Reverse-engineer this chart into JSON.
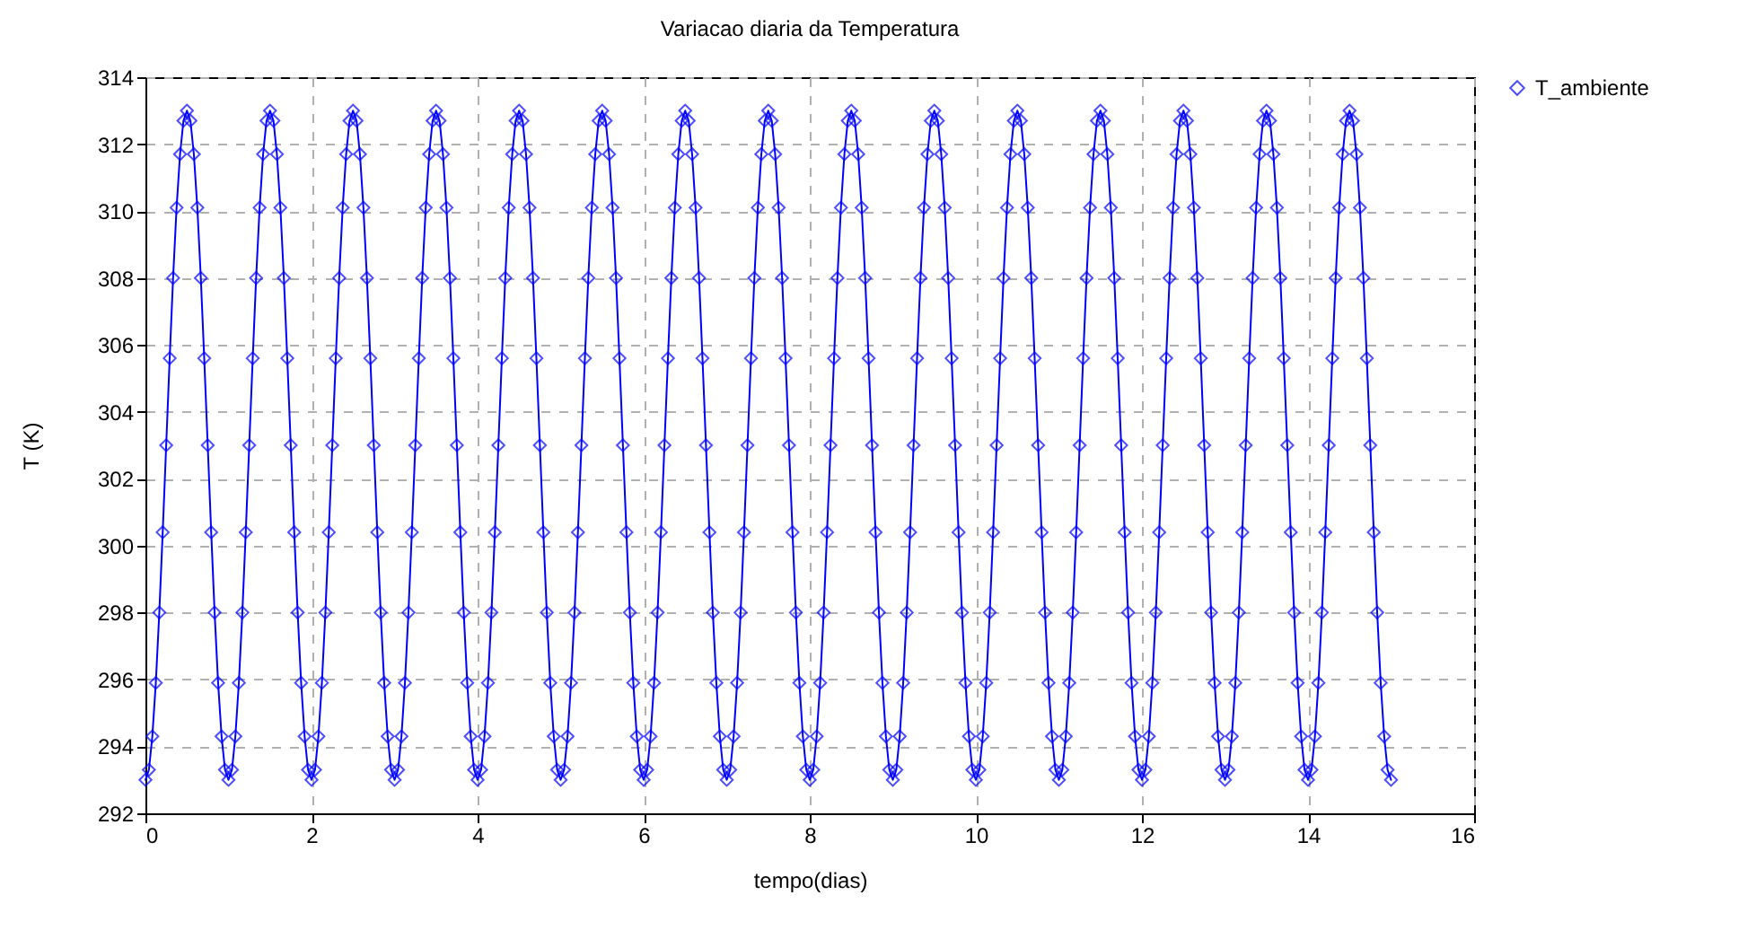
{
  "chart_data": {
    "type": "line",
    "title": "Variacao diaria da Temperatura",
    "xlabel": "tempo(dias)",
    "ylabel": "T (K)",
    "x": [
      0,
      0.042,
      0.083,
      0.125,
      0.167,
      0.208,
      0.25,
      0.292,
      0.333,
      0.375,
      0.417,
      0.458,
      0.5,
      0.542,
      0.583,
      0.625,
      0.667,
      0.708,
      0.75,
      0.792,
      0.833,
      0.875,
      0.917,
      0.958,
      1,
      1.042,
      1.083,
      1.125,
      1.167,
      1.208,
      1.25,
      1.292,
      1.333,
      1.375,
      1.417,
      1.458,
      1.5,
      1.542,
      1.583,
      1.625,
      1.667,
      1.708,
      1.75,
      1.792,
      1.833,
      1.875,
      1.917,
      1.958,
      2,
      2.042,
      2.083,
      2.125,
      2.167,
      2.208,
      2.25,
      2.292,
      2.333,
      2.375,
      2.417,
      2.458,
      2.5,
      2.542,
      2.583,
      2.625,
      2.667,
      2.708,
      2.75,
      2.792,
      2.833,
      2.875,
      2.917,
      2.958,
      3,
      3.042,
      3.083,
      3.125,
      3.167,
      3.208,
      3.25,
      3.292,
      3.333,
      3.375,
      3.417,
      3.458,
      3.5,
      3.542,
      3.583,
      3.625,
      3.667,
      3.708,
      3.75,
      3.792,
      3.833,
      3.875,
      3.917,
      3.958,
      4,
      4.042,
      4.083,
      4.125,
      4.167,
      4.208,
      4.25,
      4.292,
      4.333,
      4.375,
      4.417,
      4.458,
      4.5,
      4.542,
      4.583,
      4.625,
      4.667,
      4.708,
      4.75,
      4.792,
      4.833,
      4.875,
      4.917,
      4.958,
      5,
      5.042,
      5.083,
      5.125,
      5.167,
      5.208,
      5.25,
      5.292,
      5.333,
      5.375,
      5.417,
      5.458,
      5.5,
      5.542,
      5.583,
      5.625,
      5.667,
      5.708,
      5.75,
      5.792,
      5.833,
      5.875,
      5.917,
      5.958,
      6,
      6.042,
      6.083,
      6.125,
      6.167,
      6.208,
      6.25,
      6.292,
      6.333,
      6.375,
      6.417,
      6.458,
      6.5,
      6.542,
      6.583,
      6.625,
      6.667,
      6.708,
      6.75,
      6.792,
      6.833,
      6.875,
      6.917,
      6.958,
      7,
      7.042,
      7.083,
      7.125,
      7.167,
      7.208,
      7.25,
      7.292,
      7.333,
      7.375,
      7.417,
      7.458,
      7.5,
      7.542,
      7.583,
      7.625,
      7.667,
      7.708,
      7.75,
      7.792,
      7.833,
      7.875,
      7.917,
      7.958,
      8,
      8.042,
      8.083,
      8.125,
      8.167,
      8.208,
      8.25,
      8.292,
      8.333,
      8.375,
      8.417,
      8.458,
      8.5,
      8.542,
      8.583,
      8.625,
      8.667,
      8.708,
      8.75,
      8.792,
      8.833,
      8.875,
      8.917,
      8.958,
      9,
      9.042,
      9.083,
      9.125,
      9.167,
      9.208,
      9.25,
      9.292,
      9.333,
      9.375,
      9.417,
      9.458,
      9.5,
      9.542,
      9.583,
      9.625,
      9.667,
      9.708,
      9.75,
      9.792,
      9.833,
      9.875,
      9.917,
      9.958,
      10,
      10.042,
      10.083,
      10.125,
      10.167,
      10.208,
      10.25,
      10.292,
      10.333,
      10.375,
      10.417,
      10.458,
      10.5,
      10.542,
      10.583,
      10.625,
      10.667,
      10.708,
      10.75,
      10.792,
      10.833,
      10.875,
      10.917,
      10.958,
      11,
      11.042,
      11.083,
      11.125,
      11.167,
      11.208,
      11.25,
      11.292,
      11.333,
      11.375,
      11.417,
      11.458,
      11.5,
      11.542,
      11.583,
      11.625,
      11.667,
      11.708,
      11.75,
      11.792,
      11.833,
      11.875,
      11.917,
      11.958,
      12,
      12.042,
      12.083,
      12.125,
      12.167,
      12.208,
      12.25,
      12.292,
      12.333,
      12.375,
      12.417,
      12.458,
      12.5,
      12.542,
      12.583,
      12.625,
      12.667,
      12.708,
      12.75,
      12.792,
      12.833,
      12.875,
      12.917,
      12.958,
      13,
      13.042,
      13.083,
      13.125,
      13.167,
      13.208,
      13.25,
      13.292,
      13.333,
      13.375,
      13.417,
      13.458,
      13.5,
      13.542,
      13.583,
      13.625,
      13.667,
      13.708,
      13.75,
      13.792,
      13.833,
      13.875,
      13.917,
      13.958,
      14,
      14.042,
      14.083,
      14.125,
      14.167,
      14.208,
      14.25,
      14.292,
      14.333,
      14.375,
      14.417,
      14.458,
      14.5,
      14.542,
      14.583,
      14.625,
      14.667,
      14.708,
      14.75,
      14.792,
      14.833,
      14.875,
      14.917,
      14.958,
      15
    ],
    "series": [
      {
        "name": "T_ambiente",
        "color": "#0000ff",
        "values": [
          293,
          293.3,
          294.3,
          295.9,
          298,
          300.4,
          303,
          305.6,
          308,
          310.1,
          311.7,
          312.7,
          313,
          312.7,
          311.7,
          310.1,
          308,
          305.6,
          303,
          300.4,
          298,
          295.9,
          294.3,
          293.3,
          293,
          293.3,
          294.3,
          295.9,
          298,
          300.4,
          303,
          305.6,
          308,
          310.1,
          311.7,
          312.7,
          313,
          312.7,
          311.7,
          310.1,
          308,
          305.6,
          303,
          300.4,
          298,
          295.9,
          294.3,
          293.3,
          293,
          293.3,
          294.3,
          295.9,
          298,
          300.4,
          303,
          305.6,
          308,
          310.1,
          311.7,
          312.7,
          313,
          312.7,
          311.7,
          310.1,
          308,
          305.6,
          303,
          300.4,
          298,
          295.9,
          294.3,
          293.3,
          293,
          293.3,
          294.3,
          295.9,
          298,
          300.4,
          303,
          305.6,
          308,
          310.1,
          311.7,
          312.7,
          313,
          312.7,
          311.7,
          310.1,
          308,
          305.6,
          303,
          300.4,
          298,
          295.9,
          294.3,
          293.3,
          293,
          293.3,
          294.3,
          295.9,
          298,
          300.4,
          303,
          305.6,
          308,
          310.1,
          311.7,
          312.7,
          313,
          312.7,
          311.7,
          310.1,
          308,
          305.6,
          303,
          300.4,
          298,
          295.9,
          294.3,
          293.3,
          293,
          293.3,
          294.3,
          295.9,
          298,
          300.4,
          303,
          305.6,
          308,
          310.1,
          311.7,
          312.7,
          313,
          312.7,
          311.7,
          310.1,
          308,
          305.6,
          303,
          300.4,
          298,
          295.9,
          294.3,
          293.3,
          293,
          293.3,
          294.3,
          295.9,
          298,
          300.4,
          303,
          305.6,
          308,
          310.1,
          311.7,
          312.7,
          313,
          312.7,
          311.7,
          310.1,
          308,
          305.6,
          303,
          300.4,
          298,
          295.9,
          294.3,
          293.3,
          293,
          293.3,
          294.3,
          295.9,
          298,
          300.4,
          303,
          305.6,
          308,
          310.1,
          311.7,
          312.7,
          313,
          312.7,
          311.7,
          310.1,
          308,
          305.6,
          303,
          300.4,
          298,
          295.9,
          294.3,
          293.3,
          293,
          293.3,
          294.3,
          295.9,
          298,
          300.4,
          303,
          305.6,
          308,
          310.1,
          311.7,
          312.7,
          313,
          312.7,
          311.7,
          310.1,
          308,
          305.6,
          303,
          300.4,
          298,
          295.9,
          294.3,
          293.3,
          293,
          293.3,
          294.3,
          295.9,
          298,
          300.4,
          303,
          305.6,
          308,
          310.1,
          311.7,
          312.7,
          313,
          312.7,
          311.7,
          310.1,
          308,
          305.6,
          303,
          300.4,
          298,
          295.9,
          294.3,
          293.3,
          293,
          293.3,
          294.3,
          295.9,
          298,
          300.4,
          303,
          305.6,
          308,
          310.1,
          311.7,
          312.7,
          313,
          312.7,
          311.7,
          310.1,
          308,
          305.6,
          303,
          300.4,
          298,
          295.9,
          294.3,
          293.3,
          293,
          293.3,
          294.3,
          295.9,
          298,
          300.4,
          303,
          305.6,
          308,
          310.1,
          311.7,
          312.7,
          313,
          312.7,
          311.7,
          310.1,
          308,
          305.6,
          303,
          300.4,
          298,
          295.9,
          294.3,
          293.3,
          293,
          293.3,
          294.3,
          295.9,
          298,
          300.4,
          303,
          305.6,
          308,
          310.1,
          311.7,
          312.7,
          313,
          312.7,
          311.7,
          310.1,
          308,
          305.6,
          303,
          300.4,
          298,
          295.9,
          294.3,
          293.3,
          293,
          293.3,
          294.3,
          295.9,
          298,
          300.4,
          303,
          305.6,
          308,
          310.1,
          311.7,
          312.7,
          313,
          312.7,
          311.7,
          310.1,
          308,
          305.6,
          303,
          300.4,
          298,
          295.9,
          294.3,
          293.3,
          293,
          293.3,
          294.3,
          295.9,
          298,
          300.4,
          303,
          305.6,
          308,
          310.1,
          311.7,
          312.7,
          313,
          312.7,
          311.7,
          310.1,
          308,
          305.6,
          303,
          300.4,
          298,
          295.9,
          294.3,
          293.3,
          293
        ]
      }
    ],
    "xlim": [
      0,
      16
    ],
    "xticks": [
      0,
      2,
      4,
      6,
      8,
      10,
      12,
      14,
      16
    ],
    "ylim": [
      292,
      314
    ],
    "yticks": [
      292,
      294,
      296,
      298,
      300,
      302,
      304,
      306,
      308,
      310,
      312,
      314
    ],
    "grid": true,
    "legend": "top right",
    "marker": "diamond",
    "line_style": "solid"
  }
}
